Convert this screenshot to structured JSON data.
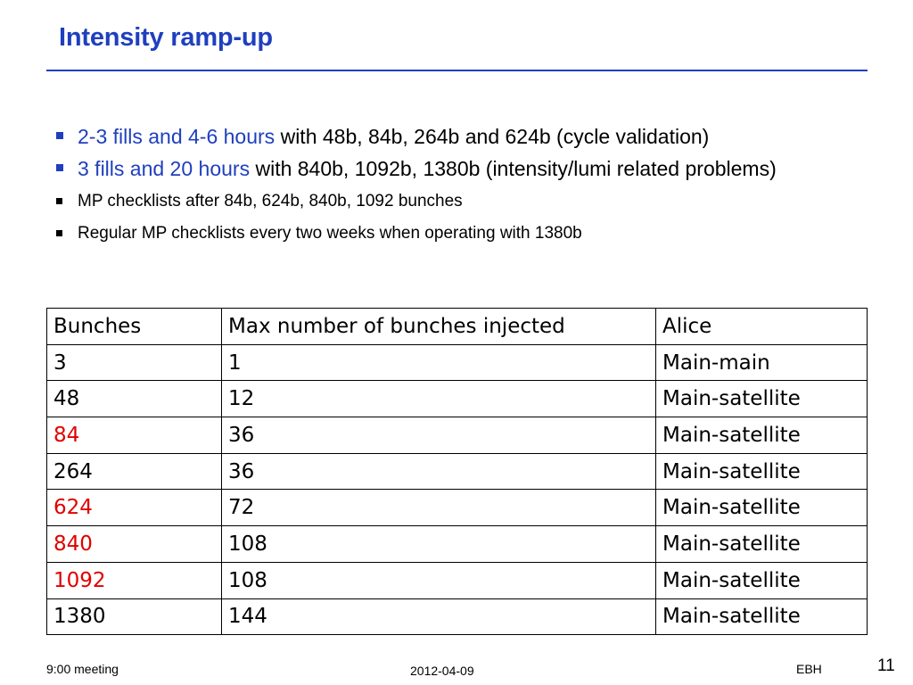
{
  "slide": {
    "title": "Intensity ramp-up"
  },
  "bullets": [
    {
      "highlight": "2-3 fills and 4-6 hours",
      "text": " with 48b, 84b, 264b and 624b (cycle validation)"
    },
    {
      "highlight": "3 fills and 20 hours",
      "text": " with  840b, 1092b, 1380b (intensity/lumi related problems)"
    },
    {
      "text": "MP checklists after 84b, 624b, 840b, 1092 bunches"
    },
    {
      "text": "Regular MP checklists every two weeks when operating with 1380b"
    }
  ],
  "colors": {
    "accent": "#1f3fbf",
    "highlight_red": "#e00000"
  },
  "table": {
    "headers": [
      "Bunches",
      "Max number of bunches injected",
      "Alice"
    ],
    "rows": [
      {
        "bunches": "3",
        "max": "1",
        "alice": "Main-main",
        "red": false
      },
      {
        "bunches": "48",
        "max": "12",
        "alice": "Main-satellite",
        "red": false
      },
      {
        "bunches": "84",
        "max": "36",
        "alice": "Main-satellite",
        "red": true
      },
      {
        "bunches": "264",
        "max": "36",
        "alice": "Main-satellite",
        "red": false
      },
      {
        "bunches": "624",
        "max": "72",
        "alice": "Main-satellite",
        "red": true
      },
      {
        "bunches": "840",
        "max": "108",
        "alice": "Main-satellite",
        "red": true
      },
      {
        "bunches": "1092",
        "max": "108",
        "alice": "Main-satellite",
        "red": true
      },
      {
        "bunches": "1380",
        "max": "144",
        "alice": "Main-satellite",
        "red": false
      }
    ]
  },
  "footer": {
    "left": "9:00 meeting",
    "center": "2012-04-09",
    "right": "EBH",
    "page_number": "11"
  }
}
